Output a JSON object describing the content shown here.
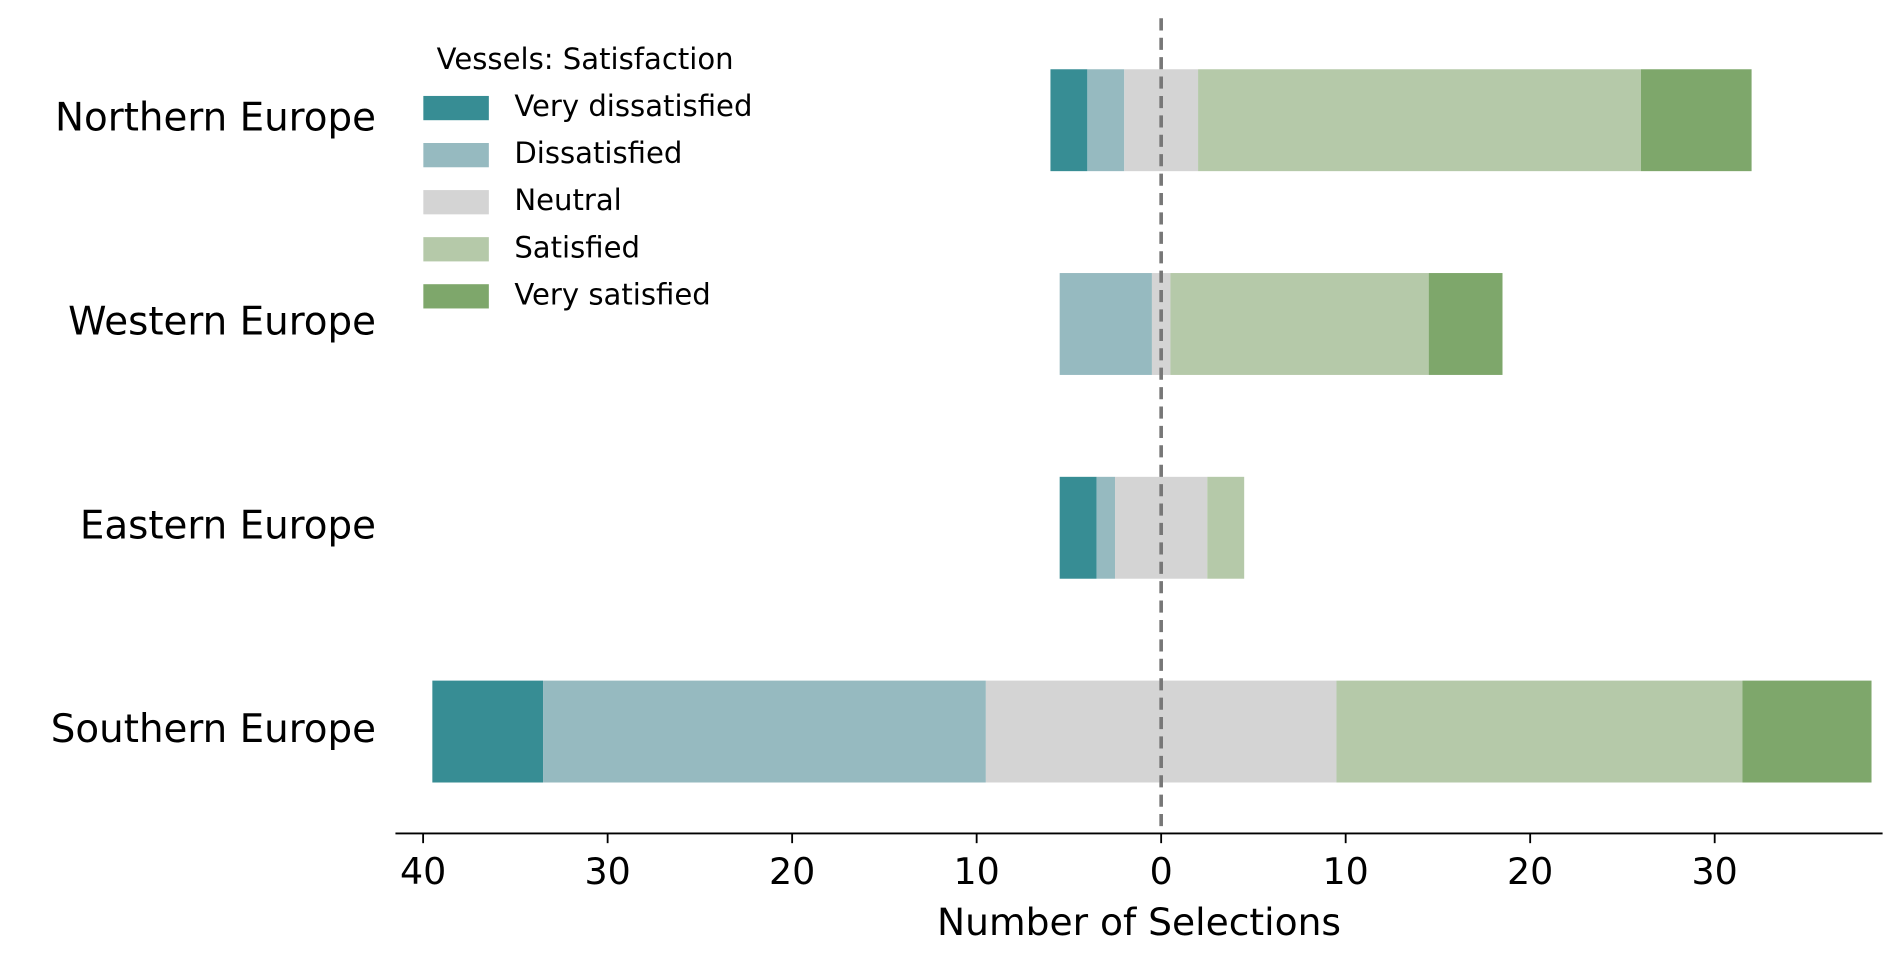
{
  "chart_data": {
    "type": "diverging_bar",
    "legend_title": "Vessels: Satisfaction",
    "xlabel": "Number of Selections",
    "categories": [
      "Northern Europe",
      "Western Europe",
      "Eastern Europe",
      "Southern Europe"
    ],
    "series": [
      {
        "name": "Very dissatisfied",
        "color": "#378d94",
        "values": [
          2,
          0,
          2,
          6
        ]
      },
      {
        "name": "Dissatisfied",
        "color": "#96bac0",
        "values": [
          2,
          5,
          1,
          24
        ]
      },
      {
        "name": "Neutral",
        "color": "#d4d4d4",
        "values": [
          4,
          1,
          5,
          19
        ]
      },
      {
        "name": "Satisfied",
        "color": "#b5c9a9",
        "values": [
          24,
          14,
          2,
          22
        ]
      },
      {
        "name": "Very satisfied",
        "color": "#7ea76b",
        "values": [
          6,
          4,
          0,
          7
        ]
      }
    ],
    "xlim": [
      -41.5,
      39.1
    ],
    "xticks": [
      {
        "value": -40,
        "label": "40"
      },
      {
        "value": -30,
        "label": "30"
      },
      {
        "value": -20,
        "label": "20"
      },
      {
        "value": -10,
        "label": "10"
      },
      0,
      10,
      20,
      30
    ],
    "legend": "upper left"
  }
}
